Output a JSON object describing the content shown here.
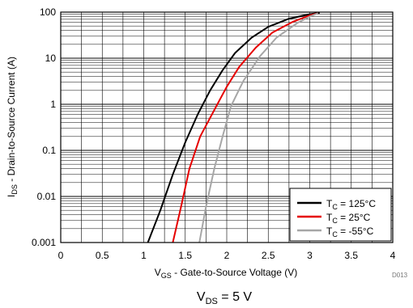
{
  "chart_data": {
    "type": "line",
    "title": "",
    "xlabel": {
      "main": "V",
      "sub": "GS",
      "rest": " - Gate-to-Source Voltage (V)"
    },
    "ylabel": {
      "main": "I",
      "sub": "DS",
      "rest": " - Drain-to-Source Current (A)"
    },
    "xlim": [
      0,
      4
    ],
    "ylim": [
      0.001,
      100
    ],
    "yscale": "log",
    "x_ticks": [
      "0",
      "0.5",
      "1",
      "1.5",
      "2",
      "2.5",
      "3",
      "3.5",
      "4"
    ],
    "y_ticks": [
      "0.001",
      "0.01",
      "0.1",
      "1",
      "10",
      "100"
    ],
    "grid": true,
    "legend_position": "bottom-right",
    "series": [
      {
        "name": "T_C = 125°C",
        "label": {
          "main": "T",
          "sub": "C",
          "rest": " = 125°C"
        },
        "color": "#000000",
        "points": [
          [
            1.05,
            0.001
          ],
          [
            1.2,
            0.005
          ],
          [
            1.35,
            0.03
          ],
          [
            1.5,
            0.15
          ],
          [
            1.65,
            0.6
          ],
          [
            1.8,
            2.0
          ],
          [
            1.95,
            5.5
          ],
          [
            2.1,
            13
          ],
          [
            2.3,
            28
          ],
          [
            2.5,
            48
          ],
          [
            2.75,
            72
          ],
          [
            3.0,
            90
          ],
          [
            3.12,
            97
          ]
        ]
      },
      {
        "name": "T_C = 25°C",
        "label": {
          "main": "T",
          "sub": "C",
          "rest": " = 25°C"
        },
        "color": "#e60000",
        "points": [
          [
            1.35,
            0.001
          ],
          [
            1.45,
            0.006
          ],
          [
            1.55,
            0.04
          ],
          [
            1.68,
            0.2
          ],
          [
            1.85,
            0.75
          ],
          [
            2.0,
            2.4
          ],
          [
            2.15,
            6.5
          ],
          [
            2.35,
            17
          ],
          [
            2.55,
            36
          ],
          [
            2.8,
            62
          ],
          [
            3.0,
            85
          ],
          [
            3.1,
            95
          ]
        ]
      },
      {
        "name": "T_C = -55°C",
        "label": {
          "main": "T",
          "sub": "C",
          "rest": " = -55°C"
        },
        "color": "#a6a6a6",
        "points": [
          [
            1.67,
            0.001
          ],
          [
            1.75,
            0.006
          ],
          [
            1.85,
            0.04
          ],
          [
            1.95,
            0.2
          ],
          [
            2.05,
            0.9
          ],
          [
            2.2,
            3.2
          ],
          [
            2.4,
            11
          ],
          [
            2.6,
            28
          ],
          [
            2.85,
            58
          ],
          [
            3.0,
            80
          ],
          [
            3.1,
            95
          ]
        ]
      }
    ]
  },
  "caption": {
    "main": "V",
    "sub": "DS",
    "rest": " = 5 V"
  },
  "figure_ref": "D013"
}
